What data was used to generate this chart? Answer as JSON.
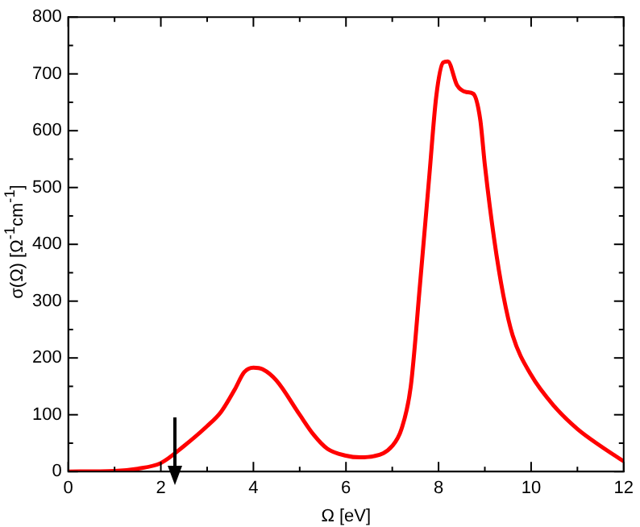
{
  "chart_data": {
    "type": "line",
    "xlabel": "Ω [eV]",
    "ylabel": "σ(Ω) [Ω$^{-1}$cm$^{-1}$]",
    "x": [
      0,
      1,
      1.5,
      2,
      2.5,
      3,
      3.3,
      3.6,
      3.8,
      4,
      4.2,
      4.5,
      5,
      5.3,
      5.6,
      6,
      6.3,
      6.6,
      7,
      7.2,
      7.4,
      7.6,
      7.8,
      7.95,
      8.1,
      8.2,
      8.4,
      8.6,
      8.75,
      8.9,
      9,
      9.2,
      9.4,
      9.6,
      10,
      10.5,
      11,
      11.5,
      12
    ],
    "series": [
      {
        "color": "#ff0000",
        "values": [
          0,
          1,
          5,
          15,
          45,
          80,
          105,
          145,
          175,
          183,
          180,
          160,
          100,
          65,
          40,
          28,
          25,
          27,
          45,
          75,
          150,
          330,
          520,
          660,
          720,
          722,
          680,
          668,
          665,
          620,
          540,
          410,
          310,
          240,
          170,
          115,
          75,
          45,
          18
        ]
      }
    ],
    "xlim": [
      0,
      12
    ],
    "xticks": [
      0,
      2,
      4,
      6,
      8,
      10,
      12
    ],
    "ylim": [
      0,
      800
    ],
    "yticks": [
      0,
      100,
      200,
      300,
      400,
      500,
      600,
      700,
      800
    ],
    "grid": false,
    "legend": false,
    "marker": "none",
    "line_style": "solid"
  }
}
